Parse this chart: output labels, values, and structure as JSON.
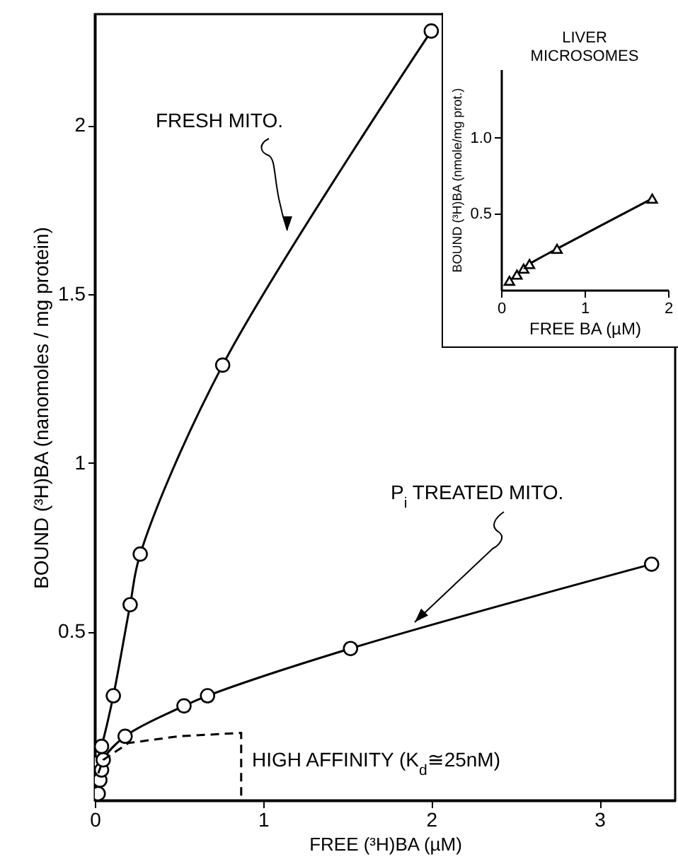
{
  "chart_data": [
    {
      "type": "line",
      "xlabel": "FREE (³H)BA (µM)",
      "ylabel": "BOUND (³H)BA (nanomoles / mg protein)",
      "xlim": [
        0,
        3.45
      ],
      "ylim": [
        0,
        2.33
      ],
      "xticks": [
        0,
        1,
        2,
        3
      ],
      "yticks": [
        0.5,
        1,
        1.5,
        2
      ],
      "grid": false,
      "series": [
        {
          "color": "#000000",
          "marker": "circle",
          "line_style": "solid",
          "x": [
            0,
            0.01,
            0.04,
            0.11,
            0.21,
            0.27,
            0.76,
            2.0
          ],
          "values": [
            0.07,
            0.11,
            0.16,
            0.31,
            0.58,
            0.73,
            1.29,
            2.28
          ]
        },
        {
          "color": "#000000",
          "marker": "circle",
          "line_style": "solid",
          "x": [
            0.02,
            0.03,
            0.04,
            0.05,
            0.18,
            0.53,
            0.67,
            1.52,
            3.31
          ],
          "values": [
            0.02,
            0.06,
            0.09,
            0.12,
            0.19,
            0.28,
            0.31,
            0.45,
            0.7
          ]
        },
        {
          "color": "#000000",
          "marker": "none",
          "line_style": "dashed",
          "x": [
            0.02,
            0.05,
            0.2,
            0.5,
            0.87,
            0.87
          ],
          "values": [
            0.08,
            0.12,
            0.17,
            0.19,
            0.2,
            0
          ]
        }
      ],
      "annotations": [
        "FRESH MITO.",
        "P$_{i}$ TREATED MITO.",
        "HIGH AFFINITY (K$_{d}$≅25nM)"
      ]
    },
    {
      "type": "line",
      "title": "LIVER MICROSOMES",
      "xlabel": "FREE BA (µM)",
      "ylabel": "BOUND (³H)BA (nmole/mg prot.)",
      "xlim": [
        0,
        2
      ],
      "ylim": [
        0,
        1.45
      ],
      "xticks": [
        0,
        1,
        2
      ],
      "yticks": [
        {
          "value": 0.5,
          "label": "0.5"
        },
        {
          "value": 1,
          "label": "1.0"
        }
      ],
      "grid": false,
      "series": [
        {
          "color": "#000000",
          "marker": "triangle",
          "line_style": "solid",
          "x": [
            0.1,
            0.19,
            0.27,
            0.34,
            0.67,
            1.81
          ],
          "values": [
            0.06,
            0.1,
            0.14,
            0.17,
            0.27,
            0.6
          ]
        }
      ]
    }
  ]
}
